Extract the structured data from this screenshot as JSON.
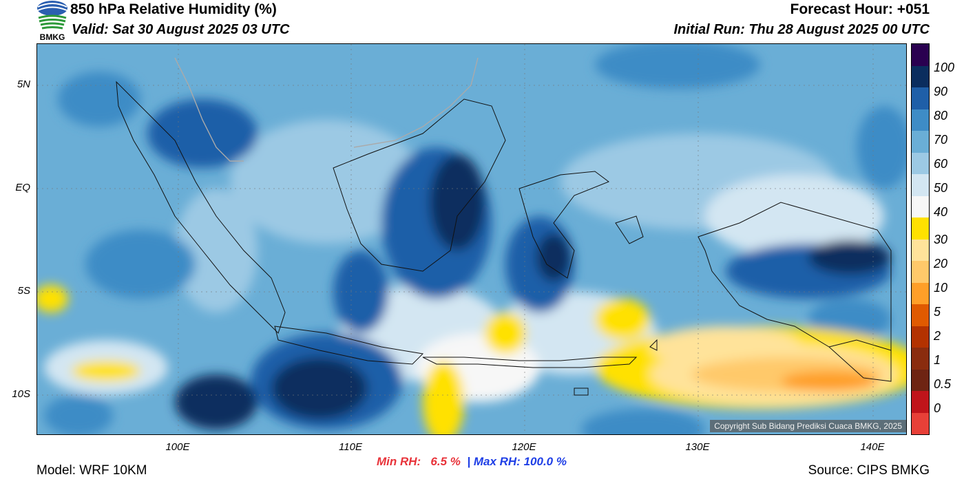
{
  "header": {
    "title": "850 hPa Relative Humidity (%)",
    "valid": "Valid: Sat 30 August 2025 03 UTC",
    "forecast_hour": "Forecast Hour: +051",
    "initial_run": "Initial Run: Thu 28 August 2025 00 UTC"
  },
  "logo": {
    "text": "BMKG",
    "icon": "bmkg-logo-icon"
  },
  "map": {
    "lat_labels": [
      "5N",
      "EQ",
      "5S",
      "10S"
    ],
    "lon_labels": [
      "100E",
      "110E",
      "120E",
      "130E",
      "140E"
    ],
    "copyright": "Copyright Sub Bidang Prediksi Cuaca BMKG, 2025"
  },
  "colorbar": {
    "labels": [
      "100",
      "90",
      "80",
      "70",
      "60",
      "50",
      "40",
      "30",
      "20",
      "10",
      "5",
      "2",
      "1",
      "0.5",
      "0"
    ],
    "colors": [
      "#2a0050",
      "#0b2d5e",
      "#1f5fa8",
      "#3e8cc6",
      "#6aaed6",
      "#9cc9e4",
      "#d3e6f2",
      "#f7f7f7",
      "#ffe100",
      "#ffe39a",
      "#ffc96a",
      "#ff9f28",
      "#e05a00",
      "#b33200",
      "#8a2c0e",
      "#6e2412",
      "#c0141a",
      "#e84038"
    ]
  },
  "stats": {
    "min_label": "Min RH:",
    "min_value": "6.5 %",
    "separator": "|",
    "max_label": "Max RH:",
    "max_value": "100.0 %"
  },
  "footer": {
    "model": "Model: WRF 10KM",
    "source": "Source: CIPS BMKG"
  }
}
